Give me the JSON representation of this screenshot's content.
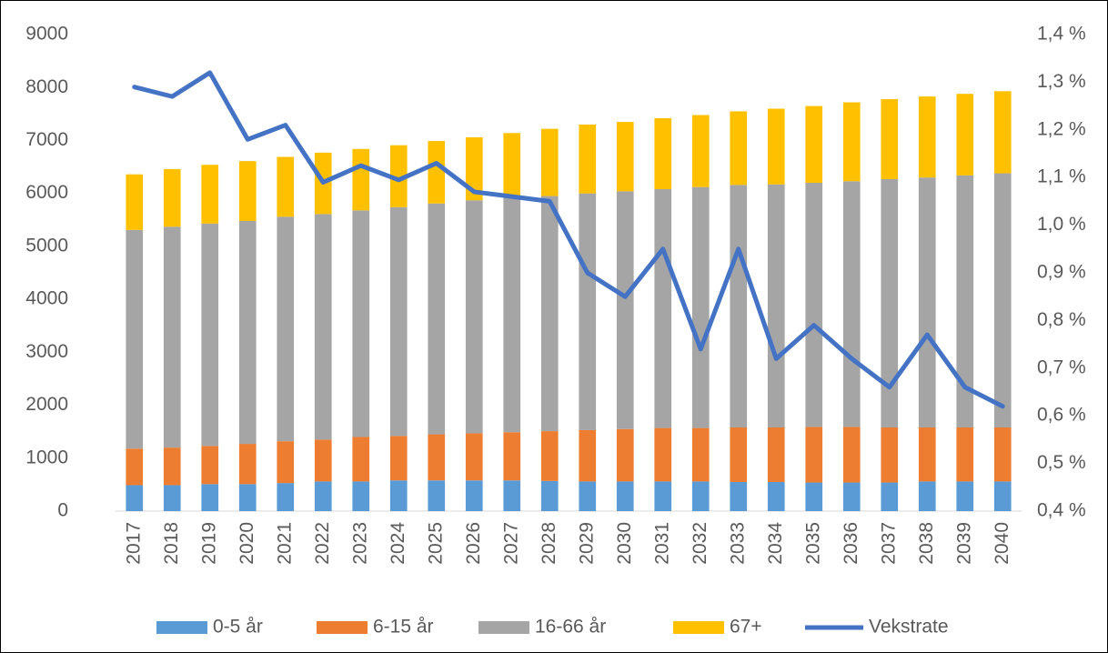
{
  "chart_data": {
    "type": "bar",
    "stacked": true,
    "categories": [
      "2017",
      "2018",
      "2019",
      "2020",
      "2021",
      "2022",
      "2023",
      "2024",
      "2025",
      "2026",
      "2027",
      "2028",
      "2029",
      "2030",
      "2031",
      "2032",
      "2033",
      "2034",
      "2035",
      "2036",
      "2037",
      "2038",
      "2039",
      "2040"
    ],
    "series": [
      {
        "name": "0-5 år",
        "color": "#5b9bd5",
        "values": [
          490,
          490,
          510,
          510,
          530,
          560,
          560,
          580,
          580,
          580,
          580,
          570,
          560,
          560,
          560,
          560,
          550,
          550,
          540,
          540,
          540,
          560,
          560,
          560
        ]
      },
      {
        "name": "6-15 år",
        "color": "#ed7d31",
        "values": [
          690,
          710,
          720,
          760,
          790,
          790,
          840,
          840,
          870,
          890,
          910,
          940,
          970,
          990,
          1010,
          1010,
          1030,
          1030,
          1050,
          1050,
          1040,
          1020,
          1020,
          1020
        ]
      },
      {
        "name": "16-66 år",
        "color": "#a5a5a5",
        "values": [
          4130,
          4170,
          4200,
          4210,
          4240,
          4260,
          4280,
          4320,
          4360,
          4400,
          4430,
          4440,
          4470,
          4490,
          4510,
          4550,
          4580,
          4590,
          4610,
          4640,
          4690,
          4720,
          4760,
          4800
        ]
      },
      {
        "name": "67+",
        "color": "#ffc000",
        "values": [
          1050,
          1090,
          1110,
          1130,
          1130,
          1160,
          1160,
          1170,
          1180,
          1190,
          1220,
          1270,
          1300,
          1310,
          1340,
          1360,
          1390,
          1430,
          1450,
          1490,
          1510,
          1530,
          1540,
          1550
        ]
      },
      {
        "name": "Vekstrate",
        "color": "#4472c4",
        "type": "line",
        "axis": "y2",
        "values": [
          1.29,
          1.27,
          1.32,
          1.18,
          1.21,
          1.09,
          1.125,
          1.095,
          1.13,
          1.07,
          1.06,
          1.05,
          0.9,
          0.85,
          0.95,
          0.74,
          0.95,
          0.72,
          0.79,
          0.72,
          0.66,
          0.77,
          0.66,
          0.62
        ]
      }
    ],
    "ylim": [
      0,
      9000
    ],
    "yticks": [
      0,
      1000,
      2000,
      3000,
      4000,
      5000,
      6000,
      7000,
      8000,
      9000
    ],
    "y2lim": [
      0.4,
      1.4
    ],
    "y2ticks": [
      {
        "value": 0.4,
        "label": "0,4 %"
      },
      {
        "value": 0.5,
        "label": "0,5 %"
      },
      {
        "value": 0.6,
        "label": "0,6 %"
      },
      {
        "value": 0.7,
        "label": "0,7 %"
      },
      {
        "value": 0.8,
        "label": "0,8 %"
      },
      {
        "value": 0.9,
        "label": "0,9 %"
      },
      {
        "value": 1.0,
        "label": "1,0 %"
      },
      {
        "value": 1.1,
        "label": "1,1 %"
      },
      {
        "value": 1.2,
        "label": "1,2 %"
      },
      {
        "value": 1.3,
        "label": "1,3 %"
      },
      {
        "value": 1.4,
        "label": "1,4 %"
      }
    ],
    "grid": false,
    "legend": "bottom"
  }
}
